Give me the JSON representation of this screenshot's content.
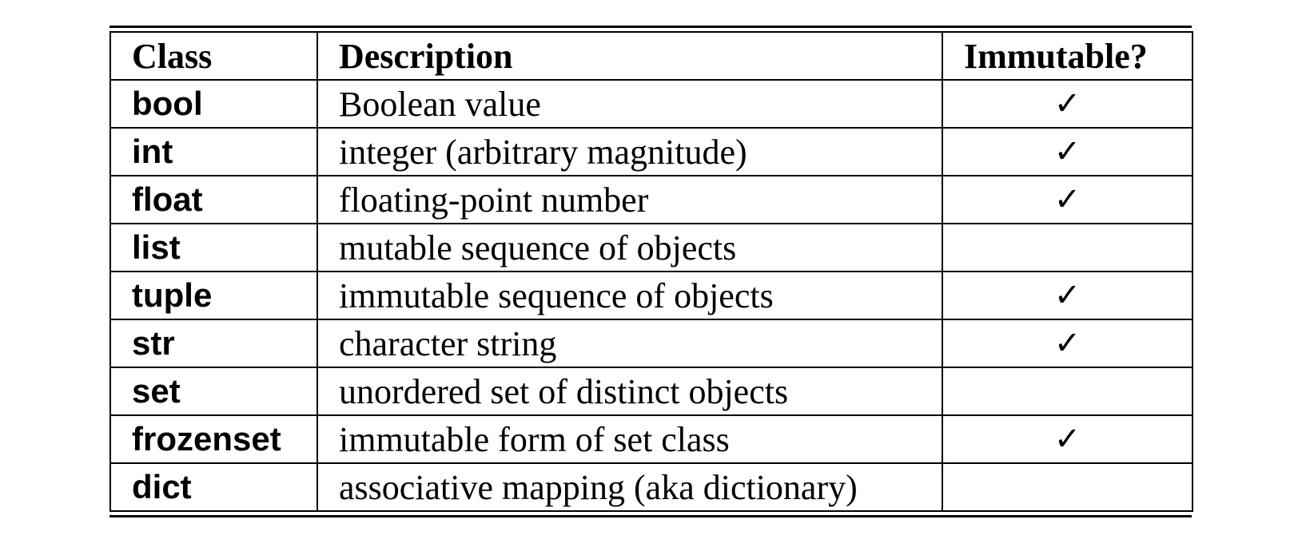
{
  "headers": {
    "class": "Class",
    "description": "Description",
    "immutable": "Immutable?"
  },
  "check_mark": "✓",
  "rows": [
    {
      "class": "bool",
      "description": "Boolean value",
      "immutable": "✓"
    },
    {
      "class": "int",
      "description": "integer (arbitrary magnitude)",
      "immutable": "✓"
    },
    {
      "class": "float",
      "description": "floating-point number",
      "immutable": "✓"
    },
    {
      "class": "list",
      "description": "mutable sequence of objects",
      "immutable": ""
    },
    {
      "class": "tuple",
      "description": "immutable sequence of objects",
      "immutable": "✓"
    },
    {
      "class": "str",
      "description": "character string",
      "immutable": "✓"
    },
    {
      "class": "set",
      "description": "unordered set of distinct objects",
      "immutable": ""
    },
    {
      "class": "frozenset",
      "description": "immutable form of set class",
      "immutable": "✓"
    },
    {
      "class": "dict",
      "description": "associative mapping (aka dictionary)",
      "immutable": ""
    }
  ]
}
